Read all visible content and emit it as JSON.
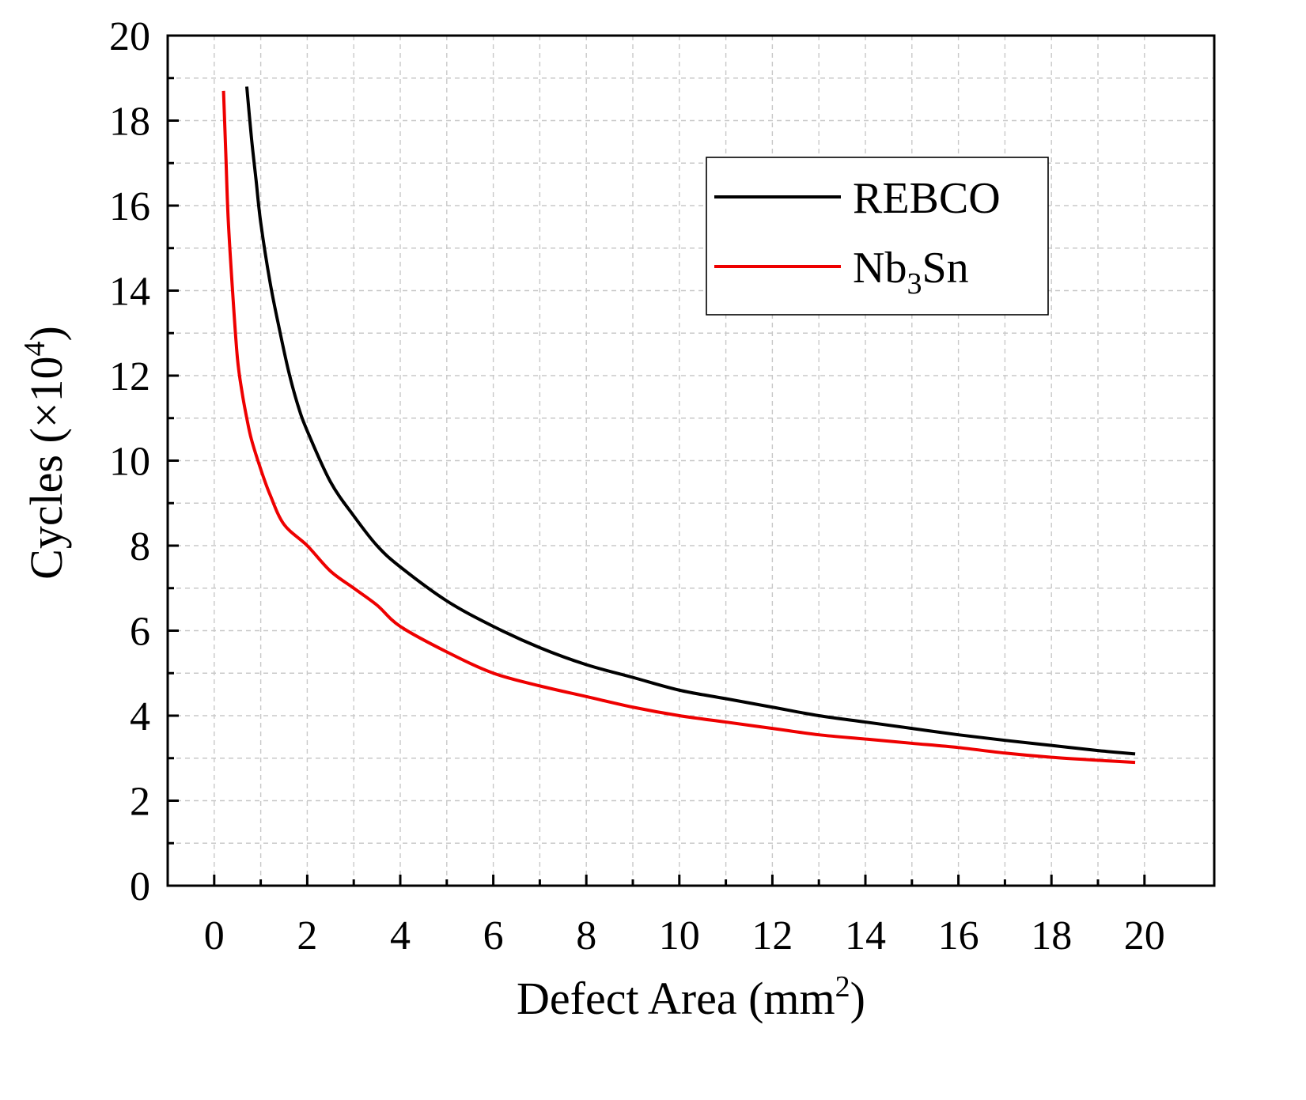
{
  "chart_data": {
    "type": "line",
    "xlabel": {
      "main": "Defect Area (mm",
      "sup": "2",
      "tail": ")"
    },
    "ylabel": {
      "main": "Cycles (×10",
      "sup": "4",
      "tail": ")"
    },
    "xlim": [
      -1,
      21.5
    ],
    "ylim": [
      0,
      20
    ],
    "xticks": [
      0,
      2,
      4,
      6,
      8,
      10,
      12,
      14,
      16,
      18,
      20
    ],
    "yticks": [
      0,
      2,
      4,
      6,
      8,
      10,
      12,
      14,
      16,
      18,
      20
    ],
    "xtick_labels": [
      "0",
      "2",
      "4",
      "6",
      "8",
      "10",
      "12",
      "14",
      "16",
      "18",
      "20"
    ],
    "ytick_labels": [
      "0",
      "2",
      "4",
      "6",
      "8",
      "10",
      "12",
      "14",
      "16",
      "18",
      "20"
    ],
    "grid": true,
    "legend_position": "top-right",
    "series": [
      {
        "name": "REBCO",
        "label": {
          "main": "REBCO",
          "sub": "",
          "tail": ""
        },
        "color": "#000000",
        "x": [
          0.7,
          0.8,
          0.9,
          1.0,
          1.2,
          1.4,
          1.6,
          1.8,
          2.0,
          2.5,
          3.0,
          3.5,
          4.0,
          5.0,
          6.0,
          7.0,
          8.0,
          9.0,
          10.0,
          11.0,
          12.0,
          13.0,
          14.0,
          15.0,
          16.0,
          17.0,
          18.0,
          19.0,
          19.8
        ],
        "y": [
          18.8,
          17.6,
          16.6,
          15.6,
          14.2,
          13.1,
          12.1,
          11.3,
          10.7,
          9.5,
          8.7,
          8.0,
          7.5,
          6.7,
          6.1,
          5.6,
          5.2,
          4.9,
          4.6,
          4.4,
          4.2,
          4.0,
          3.85,
          3.7,
          3.55,
          3.42,
          3.3,
          3.18,
          3.1
        ]
      },
      {
        "name": "Nb3Sn",
        "label": {
          "main": "Nb",
          "sub": "3",
          "tail": "Sn"
        },
        "color": "#ee0000",
        "x": [
          0.2,
          0.25,
          0.3,
          0.4,
          0.5,
          0.6,
          0.7,
          0.8,
          1.0,
          1.2,
          1.5,
          2.0,
          2.5,
          3.0,
          3.5,
          4.0,
          5.0,
          6.0,
          7.0,
          8.0,
          9.0,
          10.0,
          11.0,
          12.0,
          13.0,
          14.0,
          15.0,
          16.0,
          17.0,
          18.0,
          19.0,
          19.8
        ],
        "y": [
          18.7,
          17.2,
          15.7,
          13.9,
          12.4,
          11.6,
          11.0,
          10.5,
          9.8,
          9.2,
          8.5,
          8.0,
          7.4,
          7.0,
          6.6,
          6.1,
          5.5,
          5.0,
          4.7,
          4.45,
          4.2,
          4.0,
          3.85,
          3.7,
          3.55,
          3.45,
          3.35,
          3.25,
          3.12,
          3.02,
          2.95,
          2.9
        ]
      }
    ]
  }
}
